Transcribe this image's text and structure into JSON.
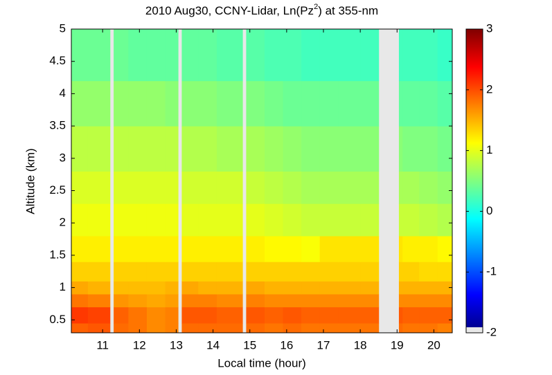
{
  "chart_data": {
    "type": "heatmap",
    "title_parts": [
      "2010 Aug30, CCNY-Lidar, Ln(Pz",
      "2",
      ") at 355-nm"
    ],
    "xlabel": "Local time (hour)",
    "ylabel": "Altitude (km)",
    "xlim": [
      10.15,
      20.5
    ],
    "xticks": [
      11,
      12,
      13,
      14,
      15,
      16,
      17,
      18,
      19,
      20
    ],
    "ylim": [
      0.3,
      5
    ],
    "yticks": [
      0.5,
      1,
      1.5,
      2,
      2.5,
      3,
      3.5,
      4,
      4.5,
      5
    ],
    "clim": [
      -2,
      3
    ],
    "cticks": [
      -2,
      -1,
      0,
      1,
      2,
      3
    ],
    "colormap": "jet",
    "x_edges": [
      10.15,
      10.6,
      11.2,
      11.3,
      11.7,
      12.2,
      12.7,
      13.05,
      13.15,
      13.6,
      14.1,
      14.8,
      14.9,
      15.4,
      15.9,
      16.4,
      16.9,
      17.4,
      18.0,
      18.5,
      19.05,
      19.15,
      19.6,
      20.1,
      20.5
    ],
    "y_edges": [
      0.3,
      0.45,
      0.7,
      0.9,
      1.1,
      1.4,
      1.8,
      2.3,
      2.8,
      3.5,
      4.2,
      5.0
    ],
    "values": [
      [
        1.9,
        1.95,
        null,
        1.85,
        1.8,
        1.7,
        1.75,
        null,
        1.85,
        1.85,
        1.85,
        null,
        1.85,
        1.8,
        1.85,
        1.8,
        1.8,
        1.8,
        1.8,
        null,
        1.85,
        1.8,
        1.8,
        1.75
      ],
      [
        2.1,
        2.05,
        null,
        1.9,
        1.8,
        1.7,
        1.75,
        null,
        1.95,
        1.95,
        1.9,
        null,
        1.95,
        1.9,
        1.95,
        1.9,
        1.9,
        1.9,
        1.9,
        null,
        1.95,
        1.9,
        1.9,
        1.9
      ],
      [
        1.8,
        1.75,
        null,
        1.65,
        1.6,
        1.55,
        1.6,
        null,
        1.75,
        1.75,
        1.7,
        null,
        1.75,
        1.7,
        1.7,
        1.7,
        1.7,
        1.7,
        1.7,
        null,
        1.7,
        1.7,
        1.7,
        1.7
      ],
      [
        1.55,
        1.5,
        null,
        1.45,
        1.45,
        1.45,
        1.5,
        null,
        1.55,
        1.5,
        1.5,
        null,
        1.55,
        1.5,
        1.5,
        1.5,
        1.5,
        1.5,
        1.5,
        null,
        1.5,
        1.5,
        1.5,
        1.5
      ],
      [
        1.35,
        1.35,
        null,
        1.35,
        1.35,
        1.35,
        1.35,
        null,
        1.35,
        1.35,
        1.35,
        null,
        1.35,
        1.35,
        1.35,
        1.35,
        1.35,
        1.35,
        1.35,
        null,
        1.35,
        1.35,
        1.3,
        1.3
      ],
      [
        1.2,
        1.2,
        null,
        1.2,
        1.2,
        1.2,
        1.2,
        null,
        1.2,
        1.2,
        1.2,
        null,
        1.2,
        1.15,
        1.15,
        1.1,
        1.25,
        1.25,
        1.25,
        null,
        1.25,
        1.2,
        1.2,
        1.15
      ],
      [
        1.05,
        1.05,
        null,
        1.05,
        1.05,
        1.05,
        1.05,
        null,
        1.0,
        1.0,
        1.0,
        null,
        1.0,
        0.95,
        0.9,
        0.85,
        0.85,
        0.85,
        0.85,
        null,
        0.85,
        0.85,
        0.8,
        0.75
      ],
      [
        0.95,
        0.95,
        null,
        0.95,
        0.95,
        0.95,
        0.95,
        null,
        0.9,
        0.9,
        0.9,
        null,
        0.85,
        0.8,
        0.75,
        0.7,
        0.7,
        0.7,
        0.7,
        null,
        0.7,
        0.7,
        0.65,
        0.6
      ],
      [
        0.8,
        0.8,
        null,
        0.8,
        0.8,
        0.8,
        0.8,
        null,
        0.75,
        0.75,
        0.7,
        null,
        0.7,
        0.65,
        0.6,
        0.55,
        0.55,
        0.55,
        0.55,
        null,
        0.55,
        0.5,
        0.5,
        0.45
      ],
      [
        0.6,
        0.6,
        null,
        0.6,
        0.6,
        0.6,
        0.55,
        null,
        0.55,
        0.55,
        0.5,
        null,
        0.5,
        0.45,
        0.4,
        0.4,
        0.4,
        0.4,
        0.4,
        null,
        0.35,
        0.35,
        0.35,
        0.3
      ],
      [
        0.4,
        0.4,
        null,
        0.4,
        0.35,
        0.35,
        0.35,
        null,
        0.35,
        0.35,
        0.3,
        null,
        0.3,
        0.25,
        0.25,
        0.2,
        0.2,
        0.2,
        0.2,
        null,
        0.2,
        0.2,
        0.2,
        0.15
      ]
    ]
  }
}
